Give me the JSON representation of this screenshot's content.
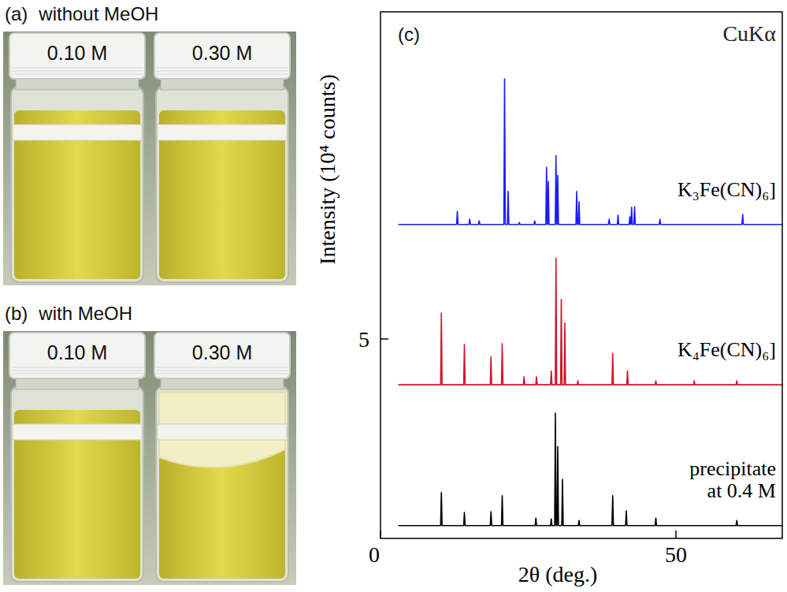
{
  "photos": [
    {
      "label": "(a)",
      "title": "without MeOH",
      "vials": [
        {
          "label": "0.10 M",
          "precipitate": false
        },
        {
          "label": "0.30 M",
          "precipitate": false
        }
      ]
    },
    {
      "label": "(b)",
      "title": "with MeOH",
      "vials": [
        {
          "label": "0.10 M",
          "precipitate": false
        },
        {
          "label": "0.30 M",
          "precipitate": true
        }
      ]
    }
  ],
  "chart_data": {
    "type": "line",
    "panel_label": "(c)",
    "annotations": [
      "CuKα"
    ],
    "x_label": "2θ (deg.)",
    "y_label": "Intensity (10⁴ counts)",
    "xlim": [
      0,
      68
    ],
    "ylim": [
      0,
      13.2
    ],
    "xticks": [
      0,
      50
    ],
    "yticks": [
      5
    ],
    "series": [
      {
        "name": "K₃Fe(CN)₆]",
        "color": "#1a1aff",
        "x": [
          3,
          12.88,
          13.0,
          13.12,
          14.98,
          15.1,
          15.22,
          16.58,
          16.7,
          16.82,
          20.88,
          21.0,
          21.12,
          21.48,
          21.6,
          21.72,
          23.38,
          23.5,
          23.62,
          25.98,
          26.1,
          26.22,
          27.98,
          28.1,
          28.22,
          28.28,
          28.4,
          28.52,
          29.58,
          29.7,
          29.82,
          29.88,
          30.0,
          30.12,
          33.08,
          33.2,
          33.32,
          33.48,
          33.6,
          33.72,
          38.58,
          38.7,
          38.82,
          40.08,
          40.2,
          40.32,
          42.08,
          42.2,
          42.32,
          42.38,
          42.5,
          42.62,
          42.88,
          43.0,
          43.12,
          47.18,
          47.3,
          47.42,
          61.18,
          61.3,
          61.42,
          68
        ],
        "values": [
          7.87,
          7.87,
          8.2,
          7.87,
          7.87,
          8.0,
          7.87,
          7.87,
          7.96,
          7.87,
          7.87,
          11.52,
          7.87,
          7.87,
          8.7,
          7.87,
          7.87,
          7.92,
          7.87,
          7.87,
          7.96,
          7.87,
          7.87,
          9.3,
          7.87,
          7.87,
          8.95,
          7.87,
          7.87,
          9.6,
          7.87,
          7.87,
          9.1,
          7.87,
          7.87,
          8.7,
          7.87,
          7.87,
          8.44,
          7.87,
          7.87,
          8.0,
          7.87,
          7.87,
          8.1,
          7.87,
          7.87,
          8.06,
          7.87,
          7.87,
          8.3,
          7.87,
          7.87,
          8.32,
          7.87,
          7.87,
          8.0,
          7.87,
          7.87,
          8.12,
          7.87,
          7.87
        ]
      },
      {
        "name": "K₄Fe(CN)₆]",
        "color": "#d0142c",
        "x": [
          3,
          10.18,
          10.3,
          10.42,
          14.08,
          14.2,
          14.32,
          18.58,
          18.7,
          18.82,
          20.48,
          20.6,
          20.72,
          24.18,
          24.3,
          24.42,
          26.28,
          26.4,
          26.52,
          28.78,
          28.9,
          29.02,
          29.58,
          29.7,
          29.82,
          30.48,
          30.6,
          30.72,
          31.08,
          31.2,
          31.32,
          33.28,
          33.4,
          33.52,
          39.18,
          39.3,
          39.42,
          41.68,
          41.8,
          41.92,
          46.48,
          46.6,
          46.72,
          52.98,
          53.1,
          53.22,
          60.18,
          60.3,
          60.42,
          68
        ],
        "values": [
          3.85,
          3.85,
          5.65,
          3.85,
          3.85,
          4.86,
          3.85,
          3.85,
          4.55,
          3.85,
          3.85,
          4.88,
          3.85,
          3.85,
          4.05,
          3.85,
          3.85,
          4.05,
          3.85,
          3.85,
          4.2,
          3.85,
          3.85,
          7.02,
          3.85,
          3.85,
          5.99,
          3.85,
          3.85,
          5.4,
          3.85,
          3.85,
          3.95,
          3.85,
          3.85,
          4.64,
          3.85,
          3.85,
          4.2,
          3.85,
          3.85,
          3.95,
          3.85,
          3.85,
          3.95,
          3.85,
          3.85,
          3.95,
          3.85,
          3.85
        ]
      },
      {
        "name": "precipitate at 0.4 M",
        "color": "#000000",
        "x": [
          3,
          10.18,
          10.3,
          10.42,
          14.08,
          14.2,
          14.32,
          18.58,
          18.7,
          18.82,
          20.48,
          20.6,
          20.72,
          26.18,
          26.3,
          26.42,
          28.78,
          28.9,
          29.02,
          29.48,
          29.6,
          29.72,
          29.88,
          30.0,
          30.12,
          30.68,
          30.8,
          30.92,
          33.48,
          33.6,
          33.72,
          39.18,
          39.3,
          39.42,
          41.48,
          41.6,
          41.72,
          46.48,
          46.6,
          46.72,
          60.18,
          60.3,
          60.42,
          68
        ],
        "values": [
          0.32,
          0.32,
          1.15,
          0.32,
          0.32,
          0.65,
          0.32,
          0.32,
          0.67,
          0.32,
          0.32,
          1.07,
          0.32,
          0.32,
          0.51,
          0.32,
          0.32,
          0.49,
          0.32,
          0.32,
          3.14,
          0.32,
          0.32,
          2.3,
          0.32,
          0.32,
          1.48,
          0.32,
          0.32,
          0.45,
          0.32,
          0.32,
          1.07,
          0.32,
          0.32,
          0.69,
          0.32,
          0.32,
          0.51,
          0.32,
          0.32,
          0.45,
          0.32,
          0.32
        ]
      }
    ]
  }
}
